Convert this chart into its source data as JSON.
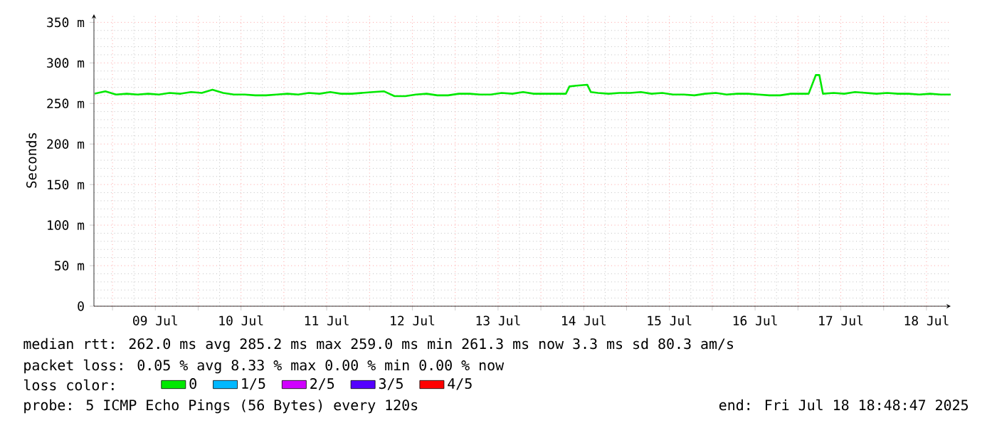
{
  "chart_data": {
    "type": "line",
    "ylabel": "Seconds",
    "legend_title": "loss color:",
    "legend": "bottom",
    "grid": true,
    "marker": "none",
    "line_style": "solid",
    "xlim": [
      "2025-07-08T18:48",
      "2025-07-18T18:48"
    ],
    "xticks": [
      {
        "value": "2025-07-09T00:00",
        "label": null
      },
      {
        "value": "2025-07-09T12:00",
        "label": "09 Jul"
      },
      {
        "value": "2025-07-10T00:00",
        "label": null
      },
      {
        "value": "2025-07-10T12:00",
        "label": "10 Jul"
      },
      {
        "value": "2025-07-11T00:00",
        "label": null
      },
      {
        "value": "2025-07-11T12:00",
        "label": "11 Jul"
      },
      {
        "value": "2025-07-12T00:00",
        "label": null
      },
      {
        "value": "2025-07-12T12:00",
        "label": "12 Jul"
      },
      {
        "value": "2025-07-13T00:00",
        "label": null
      },
      {
        "value": "2025-07-13T12:00",
        "label": "13 Jul"
      },
      {
        "value": "2025-07-14T00:00",
        "label": null
      },
      {
        "value": "2025-07-14T12:00",
        "label": "14 Jul"
      },
      {
        "value": "2025-07-15T00:00",
        "label": null
      },
      {
        "value": "2025-07-15T12:00",
        "label": "15 Jul"
      },
      {
        "value": "2025-07-16T00:00",
        "label": null
      },
      {
        "value": "2025-07-16T12:00",
        "label": "16 Jul"
      },
      {
        "value": "2025-07-17T00:00",
        "label": null
      },
      {
        "value": "2025-07-17T12:00",
        "label": "17 Jul"
      },
      {
        "value": "2025-07-18T00:00",
        "label": null
      },
      {
        "value": "2025-07-18T12:00",
        "label": "18 Jul"
      }
    ],
    "ylim": [
      0,
      360
    ],
    "yticks": [
      0,
      {
        "value": 50,
        "label": "50 m"
      },
      {
        "value": 100,
        "label": "100 m"
      },
      {
        "value": 150,
        "label": "150 m"
      },
      {
        "value": 200,
        "label": "200 m"
      },
      {
        "value": 250,
        "label": "250 m"
      },
      {
        "value": 300,
        "label": "300 m"
      },
      {
        "value": 350,
        "label": "350 m"
      }
    ],
    "x": [
      "2025-07-08T19:00",
      "2025-07-08T22:00",
      "2025-07-09T01:00",
      "2025-07-09T04:00",
      "2025-07-09T07:00",
      "2025-07-09T10:00",
      "2025-07-09T13:00",
      "2025-07-09T16:00",
      "2025-07-09T19:00",
      "2025-07-09T22:00",
      "2025-07-10T01:00",
      "2025-07-10T04:00",
      "2025-07-10T07:00",
      "2025-07-10T10:00",
      "2025-07-10T13:00",
      "2025-07-10T16:00",
      "2025-07-10T19:00",
      "2025-07-10T22:00",
      "2025-07-11T01:00",
      "2025-07-11T04:00",
      "2025-07-11T07:00",
      "2025-07-11T10:00",
      "2025-07-11T13:00",
      "2025-07-11T16:00",
      "2025-07-11T19:00",
      "2025-07-11T22:00",
      "2025-07-12T01:00",
      "2025-07-12T04:00",
      "2025-07-12T07:00",
      "2025-07-12T10:00",
      "2025-07-12T13:00",
      "2025-07-12T16:00",
      "2025-07-12T19:00",
      "2025-07-12T22:00",
      "2025-07-13T01:00",
      "2025-07-13T04:00",
      "2025-07-13T07:00",
      "2025-07-13T10:00",
      "2025-07-13T13:00",
      "2025-07-13T16:00",
      "2025-07-13T19:00",
      "2025-07-13T22:00",
      "2025-07-14T01:00",
      "2025-07-14T04:00",
      "2025-07-14T07:00",
      "2025-07-14T08:00",
      "2025-07-14T10:00",
      "2025-07-14T13:00",
      "2025-07-14T14:00",
      "2025-07-14T16:00",
      "2025-07-14T19:00",
      "2025-07-14T22:00",
      "2025-07-15T01:00",
      "2025-07-15T04:00",
      "2025-07-15T07:00",
      "2025-07-15T10:00",
      "2025-07-15T13:00",
      "2025-07-15T16:00",
      "2025-07-15T19:00",
      "2025-07-15T22:00",
      "2025-07-16T01:00",
      "2025-07-16T04:00",
      "2025-07-16T07:00",
      "2025-07-16T10:00",
      "2025-07-16T13:00",
      "2025-07-16T16:00",
      "2025-07-16T19:00",
      "2025-07-16T22:00",
      "2025-07-17T01:00",
      "2025-07-17T03:00",
      "2025-07-17T05:00",
      "2025-07-17T06:00",
      "2025-07-17T07:00",
      "2025-07-17T10:00",
      "2025-07-17T13:00",
      "2025-07-17T16:00",
      "2025-07-17T19:00",
      "2025-07-17T22:00",
      "2025-07-18T01:00",
      "2025-07-18T04:00",
      "2025-07-18T07:00",
      "2025-07-18T10:00",
      "2025-07-18T13:00",
      "2025-07-18T16:00",
      "2025-07-18T18:48"
    ],
    "series": [
      {
        "name": "0",
        "color": "#00e800",
        "values": [
          262,
          265,
          261,
          262,
          261,
          262,
          261,
          263,
          262,
          264,
          263,
          267,
          263,
          261,
          261,
          260,
          260,
          261,
          262,
          261,
          263,
          262,
          264,
          262,
          262,
          263,
          264,
          265,
          259,
          259,
          261,
          262,
          260,
          260,
          262,
          262,
          261,
          261,
          263,
          262,
          264,
          262,
          262,
          262,
          262,
          271,
          272,
          273,
          264,
          263,
          262,
          263,
          263,
          264,
          262,
          263,
          261,
          261,
          260,
          262,
          263,
          261,
          262,
          262,
          261,
          260,
          260,
          262,
          262,
          262,
          285,
          285,
          262,
          263,
          262,
          264,
          263,
          262,
          263,
          262,
          262,
          261,
          262,
          261,
          261
        ]
      },
      {
        "name": "1/5",
        "color": "#00b8ff",
        "values": [
          null,
          null,
          null,
          null,
          null,
          null,
          null,
          null,
          null,
          null,
          null,
          null,
          null,
          null,
          null,
          null,
          null,
          null,
          null,
          null,
          null,
          null,
          null,
          null,
          null,
          null,
          null,
          null,
          null,
          null,
          null,
          null,
          null,
          null,
          null,
          null,
          null,
          null,
          null,
          null,
          null,
          null,
          null,
          null,
          null,
          null,
          null,
          null,
          null,
          null,
          null,
          null,
          null,
          null,
          null,
          null,
          null,
          null,
          null,
          null,
          null,
          null,
          null,
          null,
          null,
          null,
          null,
          null,
          null,
          null,
          null,
          null,
          null,
          null,
          null,
          null,
          null,
          null,
          null,
          null,
          null,
          null,
          null,
          null,
          null
        ]
      },
      {
        "name": "2/5",
        "color": "#d000ff",
        "values": [
          null,
          null,
          null,
          null,
          null,
          null,
          null,
          null,
          null,
          null,
          null,
          null,
          null,
          null,
          null,
          null,
          null,
          null,
          null,
          null,
          null,
          null,
          null,
          null,
          null,
          null,
          null,
          null,
          null,
          null,
          null,
          null,
          null,
          null,
          null,
          null,
          null,
          null,
          null,
          null,
          null,
          null,
          null,
          null,
          null,
          null,
          null,
          null,
          null,
          null,
          null,
          null,
          null,
          null,
          null,
          null,
          null,
          null,
          null,
          null,
          null,
          null,
          null,
          null,
          null,
          null,
          null,
          null,
          null,
          null,
          null,
          null,
          null,
          null,
          null,
          null,
          null,
          null,
          null,
          null,
          null,
          null,
          null,
          null,
          null
        ]
      },
      {
        "name": "3/5",
        "color": "#5500ff",
        "values": [
          null,
          null,
          null,
          null,
          null,
          null,
          null,
          null,
          null,
          null,
          null,
          null,
          null,
          null,
          null,
          null,
          null,
          null,
          null,
          null,
          null,
          null,
          null,
          null,
          null,
          null,
          null,
          null,
          null,
          null,
          null,
          null,
          null,
          null,
          null,
          null,
          null,
          null,
          null,
          null,
          null,
          null,
          null,
          null,
          null,
          null,
          null,
          null,
          null,
          null,
          null,
          null,
          null,
          null,
          null,
          null,
          null,
          null,
          null,
          null,
          null,
          null,
          null,
          null,
          null,
          null,
          null,
          null,
          null,
          null,
          null,
          null,
          null,
          null,
          null,
          null,
          null,
          null,
          null,
          null,
          null,
          null,
          null,
          null,
          null
        ]
      },
      {
        "name": "4/5",
        "color": "#ff0000",
        "values": [
          null,
          null,
          null,
          null,
          null,
          null,
          null,
          null,
          null,
          null,
          null,
          null,
          null,
          null,
          null,
          null,
          null,
          null,
          null,
          null,
          null,
          null,
          null,
          null,
          null,
          null,
          null,
          null,
          null,
          null,
          null,
          null,
          null,
          null,
          null,
          null,
          null,
          null,
          null,
          null,
          null,
          null,
          null,
          null,
          null,
          null,
          null,
          null,
          null,
          null,
          null,
          null,
          null,
          null,
          null,
          null,
          null,
          null,
          null,
          null,
          null,
          null,
          null,
          null,
          null,
          null,
          null,
          null,
          null,
          null,
          null,
          null,
          null,
          null,
          null,
          null,
          null,
          null,
          null,
          null,
          null,
          null,
          null,
          null,
          null
        ]
      }
    ],
    "annotations": [
      "median rtt:  262.0 ms avg  285.2 ms max  259.0 ms min  261.3 ms now  3.3 ms sd  80.3   am/s",
      "packet loss: 0.05 % avg  8.33 % max  0.00 % min  0.00 % now",
      "probe:       5 ICMP Echo Pings (56 Bytes) every 120s",
      "end: Fri Jul 18 18:48:47 2025"
    ]
  }
}
